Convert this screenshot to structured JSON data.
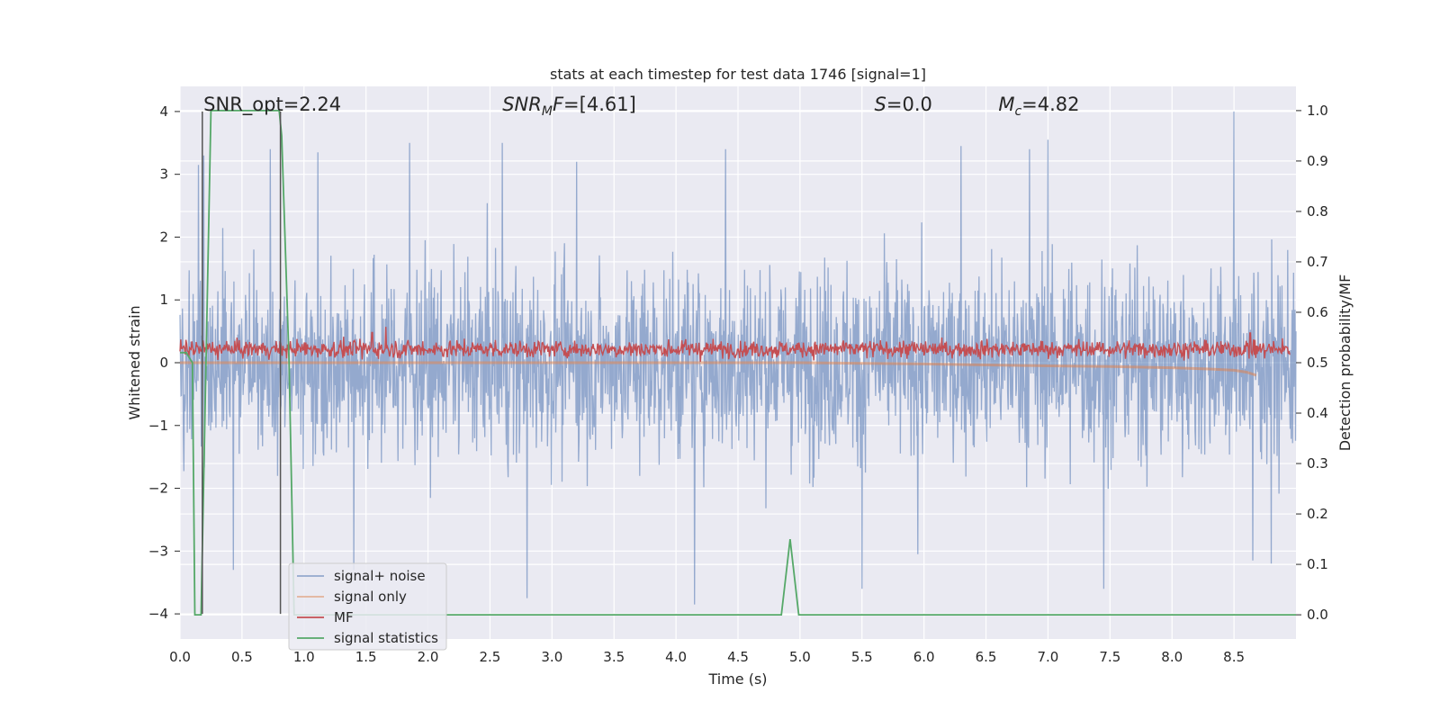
{
  "chart_data": {
    "type": "line",
    "title": "stats at each timestep for test data 1746 [signal=1]",
    "xlabel": "Time (s)",
    "ylabel_left": "Whitened strain",
    "ylabel_right": "Detection probability/MF",
    "xlim": [
      0.0,
      9.0
    ],
    "ylim_left": [
      -4.4,
      4.4
    ],
    "ylim_right": [
      -0.048,
      1.048
    ],
    "grid": true,
    "legend_position": "lower-left",
    "x_ticks": [
      "0.0",
      "0.5",
      "1.0",
      "1.5",
      "2.0",
      "2.5",
      "3.0",
      "3.5",
      "4.0",
      "4.5",
      "5.0",
      "5.5",
      "6.0",
      "6.5",
      "7.0",
      "7.5",
      "8.0",
      "8.5"
    ],
    "y_ticks_left": [
      "4",
      "3",
      "2",
      "1",
      "0",
      "−1",
      "−2",
      "−3",
      "−4"
    ],
    "y_ticks_right": [
      "1.0",
      "0.9",
      "0.8",
      "0.7",
      "0.6",
      "0.5",
      "0.4",
      "0.3",
      "0.2",
      "0.1",
      "0.0"
    ],
    "annotations": [
      {
        "text": "SNR_opt=2.24",
        "x": 0.19,
        "y": 4.0
      },
      {
        "text": "SNR_MF=[4.61]",
        "x": 2.6,
        "y": 4.0
      },
      {
        "text": "S=0.0",
        "x": 5.6,
        "y": 4.0
      },
      {
        "text": "M_c=4.82",
        "x": 6.6,
        "y": 4.0
      }
    ],
    "vertical_markers": [
      {
        "x": 0.18,
        "y_range": [
          -4.0,
          4.0
        ]
      },
      {
        "x": 0.81,
        "y_range": [
          -4.0,
          4.0
        ]
      }
    ],
    "series": [
      {
        "name": "signal+ noise",
        "color": "#4c72b0",
        "axis": "left",
        "description": "dense noise trace; band mostly within about [-2.5, 2.6], peaks to about 4.0 near 8.5 and about -3.8 near 2.8",
        "envelope_peaks": [
          {
            "x": 0.15,
            "y": 3.15
          },
          {
            "x": 0.19,
            "y": 3.3
          },
          {
            "x": 0.73,
            "y": 3.4
          },
          {
            "x": 1.11,
            "y": 3.35
          },
          {
            "x": 1.85,
            "y": 3.5
          },
          {
            "x": 2.6,
            "y": 3.5
          },
          {
            "x": 3.2,
            "y": 3.2
          },
          {
            "x": 4.4,
            "y": 3.4
          },
          {
            "x": 6.3,
            "y": 3.45
          },
          {
            "x": 6.85,
            "y": 3.4
          },
          {
            "x": 7.0,
            "y": 3.55
          },
          {
            "x": 8.5,
            "y": 4.0
          },
          {
            "x": 0.43,
            "y": -3.3
          },
          {
            "x": 1.4,
            "y": -3.3
          },
          {
            "x": 2.8,
            "y": -3.75
          },
          {
            "x": 4.15,
            "y": -3.85
          },
          {
            "x": 5.5,
            "y": -3.6
          },
          {
            "x": 5.95,
            "y": -3.05
          },
          {
            "x": 7.45,
            "y": -3.6
          },
          {
            "x": 8.65,
            "y": -3.15
          },
          {
            "x": 8.8,
            "y": -3.2
          }
        ]
      },
      {
        "name": "signal only",
        "color": "#dd8452",
        "axis": "left",
        "x": [
          0.0,
          1.0,
          2.0,
          3.0,
          4.0,
          5.0,
          6.0,
          7.0,
          7.5,
          8.0,
          8.3,
          8.5,
          8.6,
          8.68
        ],
        "y": [
          0.0,
          0.0,
          0.0,
          0.0,
          0.0,
          0.0,
          -0.02,
          -0.05,
          -0.06,
          -0.08,
          -0.1,
          -0.12,
          -0.15,
          -0.2
        ]
      },
      {
        "name": "MF",
        "color": "#c44e52",
        "axis": "right",
        "description": "noisy trace between about 0.5 and 0.56 with spikes near 1.6 (about 0.57)",
        "range": [
          0.5,
          0.57
        ]
      },
      {
        "name": "signal statistics",
        "color": "#55a868",
        "axis": "right",
        "x": [
          0.0,
          0.05,
          0.1,
          0.12,
          0.17,
          0.25,
          0.3,
          0.6,
          0.8,
          0.82,
          0.88,
          0.92,
          1.0,
          2.0,
          3.0,
          4.0,
          4.85,
          4.92,
          4.99,
          5.1,
          6.0,
          7.0,
          8.0,
          8.5,
          9.0
        ],
        "y": [
          0.52,
          0.52,
          0.5,
          0.0,
          0.0,
          1.0,
          1.0,
          1.0,
          1.0,
          0.95,
          0.5,
          0.0,
          0.0,
          0.0,
          0.0,
          0.0,
          0.0,
          0.15,
          0.0,
          0.0,
          0.0,
          0.0,
          0.0,
          0.0,
          0.0
        ]
      }
    ]
  }
}
